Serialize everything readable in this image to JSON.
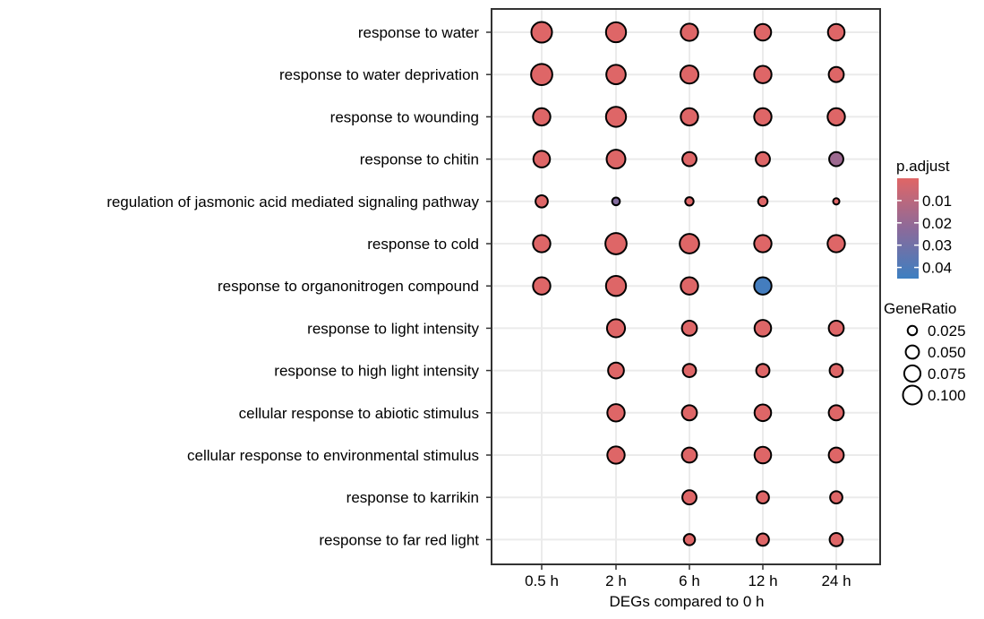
{
  "chart_data": {
    "type": "scatter",
    "subtype": "dot-plot",
    "xlabel": "DEGs compared to 0 h",
    "ylabel": "",
    "categories": [
      "0.5 h",
      "2 h",
      "6 h",
      "12 h",
      "24 h"
    ],
    "terms": [
      "response to water",
      "response to water deprivation",
      "response to wounding",
      "response to chitin",
      "regulation of jasmonic acid mediated signaling pathway",
      "response to cold",
      "response to organonitrogen compound",
      "response to light intensity",
      "response to high light intensity",
      "cellular response to abiotic stimulus",
      "cellular response to environmental stimulus",
      "response to karrikin",
      "response to far red light"
    ],
    "points": [
      {
        "term": "response to water",
        "x": "0.5 h",
        "gene_ratio": 0.085,
        "p_adjust": 0.0005
      },
      {
        "term": "response to water",
        "x": "2 h",
        "gene_ratio": 0.08,
        "p_adjust": 0.0005
      },
      {
        "term": "response to water",
        "x": "6 h",
        "gene_ratio": 0.06,
        "p_adjust": 0.0005
      },
      {
        "term": "response to water",
        "x": "12 h",
        "gene_ratio": 0.055,
        "p_adjust": 0.0005
      },
      {
        "term": "response to water",
        "x": "24 h",
        "gene_ratio": 0.055,
        "p_adjust": 0.0005
      },
      {
        "term": "response to water deprivation",
        "x": "0.5 h",
        "gene_ratio": 0.09,
        "p_adjust": 0.0005
      },
      {
        "term": "response to water deprivation",
        "x": "2 h",
        "gene_ratio": 0.075,
        "p_adjust": 0.0005
      },
      {
        "term": "response to water deprivation",
        "x": "6 h",
        "gene_ratio": 0.065,
        "p_adjust": 0.0005
      },
      {
        "term": "response to water deprivation",
        "x": "12 h",
        "gene_ratio": 0.06,
        "p_adjust": 0.0005
      },
      {
        "term": "response to water deprivation",
        "x": "24 h",
        "gene_ratio": 0.045,
        "p_adjust": 0.0005
      },
      {
        "term": "response to wounding",
        "x": "0.5 h",
        "gene_ratio": 0.06,
        "p_adjust": 0.0005
      },
      {
        "term": "response to wounding",
        "x": "2 h",
        "gene_ratio": 0.08,
        "p_adjust": 0.0005
      },
      {
        "term": "response to wounding",
        "x": "6 h",
        "gene_ratio": 0.06,
        "p_adjust": 0.0005
      },
      {
        "term": "response to wounding",
        "x": "12 h",
        "gene_ratio": 0.06,
        "p_adjust": 0.0005
      },
      {
        "term": "response to wounding",
        "x": "24 h",
        "gene_ratio": 0.06,
        "p_adjust": 0.0005
      },
      {
        "term": "response to chitin",
        "x": "0.5 h",
        "gene_ratio": 0.055,
        "p_adjust": 0.0005
      },
      {
        "term": "response to chitin",
        "x": "2 h",
        "gene_ratio": 0.07,
        "p_adjust": 0.0005
      },
      {
        "term": "response to chitin",
        "x": "6 h",
        "gene_ratio": 0.04,
        "p_adjust": 0.0005
      },
      {
        "term": "response to chitin",
        "x": "12 h",
        "gene_ratio": 0.04,
        "p_adjust": 0.0005
      },
      {
        "term": "response to chitin",
        "x": "24 h",
        "gene_ratio": 0.04,
        "p_adjust": 0.018
      },
      {
        "term": "regulation of jasmonic acid mediated signaling pathway",
        "x": "0.5 h",
        "gene_ratio": 0.03,
        "p_adjust": 0.0005
      },
      {
        "term": "regulation of jasmonic acid mediated signaling pathway",
        "x": "2 h",
        "gene_ratio": 0.012,
        "p_adjust": 0.025
      },
      {
        "term": "regulation of jasmonic acid mediated signaling pathway",
        "x": "6 h",
        "gene_ratio": 0.014,
        "p_adjust": 0.0005
      },
      {
        "term": "regulation of jasmonic acid mediated signaling pathway",
        "x": "12 h",
        "gene_ratio": 0.018,
        "p_adjust": 0.0005
      },
      {
        "term": "regulation of jasmonic acid mediated signaling pathway",
        "x": "24 h",
        "gene_ratio": 0.008,
        "p_adjust": 0.0005
      },
      {
        "term": "response to cold",
        "x": "0.5 h",
        "gene_ratio": 0.06,
        "p_adjust": 0.0005
      },
      {
        "term": "response to cold",
        "x": "2 h",
        "gene_ratio": 0.09,
        "p_adjust": 0.0005
      },
      {
        "term": "response to cold",
        "x": "6 h",
        "gene_ratio": 0.075,
        "p_adjust": 0.0005
      },
      {
        "term": "response to cold",
        "x": "12 h",
        "gene_ratio": 0.06,
        "p_adjust": 0.0005
      },
      {
        "term": "response to cold",
        "x": "24 h",
        "gene_ratio": 0.06,
        "p_adjust": 0.0005
      },
      {
        "term": "response to organonitrogen compound",
        "x": "0.5 h",
        "gene_ratio": 0.06,
        "p_adjust": 0.0005
      },
      {
        "term": "response to organonitrogen compound",
        "x": "2 h",
        "gene_ratio": 0.08,
        "p_adjust": 0.0005
      },
      {
        "term": "response to organonitrogen compound",
        "x": "6 h",
        "gene_ratio": 0.06,
        "p_adjust": 0.0005
      },
      {
        "term": "response to organonitrogen compound",
        "x": "12 h",
        "gene_ratio": 0.06,
        "p_adjust": 0.043
      },
      {
        "term": "response to light intensity",
        "x": "2 h",
        "gene_ratio": 0.065,
        "p_adjust": 0.0005
      },
      {
        "term": "response to light intensity",
        "x": "6 h",
        "gene_ratio": 0.045,
        "p_adjust": 0.0005
      },
      {
        "term": "response to light intensity",
        "x": "12 h",
        "gene_ratio": 0.055,
        "p_adjust": 0.0005
      },
      {
        "term": "response to light intensity",
        "x": "24 h",
        "gene_ratio": 0.045,
        "p_adjust": 0.0005
      },
      {
        "term": "response to high light intensity",
        "x": "2 h",
        "gene_ratio": 0.05,
        "p_adjust": 0.0005
      },
      {
        "term": "response to high light intensity",
        "x": "6 h",
        "gene_ratio": 0.035,
        "p_adjust": 0.0005
      },
      {
        "term": "response to high light intensity",
        "x": "12 h",
        "gene_ratio": 0.035,
        "p_adjust": 0.0005
      },
      {
        "term": "response to high light intensity",
        "x": "24 h",
        "gene_ratio": 0.035,
        "p_adjust": 0.0005
      },
      {
        "term": "cellular response to abiotic stimulus",
        "x": "2 h",
        "gene_ratio": 0.06,
        "p_adjust": 0.0005
      },
      {
        "term": "cellular response to abiotic stimulus",
        "x": "6 h",
        "gene_ratio": 0.045,
        "p_adjust": 0.0005
      },
      {
        "term": "cellular response to abiotic stimulus",
        "x": "12 h",
        "gene_ratio": 0.055,
        "p_adjust": 0.0005
      },
      {
        "term": "cellular response to abiotic stimulus",
        "x": "24 h",
        "gene_ratio": 0.045,
        "p_adjust": 0.0005
      },
      {
        "term": "cellular response to environmental stimulus",
        "x": "2 h",
        "gene_ratio": 0.06,
        "p_adjust": 0.0005
      },
      {
        "term": "cellular response to environmental stimulus",
        "x": "6 h",
        "gene_ratio": 0.045,
        "p_adjust": 0.0005
      },
      {
        "term": "cellular response to environmental stimulus",
        "x": "12 h",
        "gene_ratio": 0.055,
        "p_adjust": 0.0005
      },
      {
        "term": "cellular response to environmental stimulus",
        "x": "24 h",
        "gene_ratio": 0.045,
        "p_adjust": 0.0005
      },
      {
        "term": "response to karrikin",
        "x": "6 h",
        "gene_ratio": 0.04,
        "p_adjust": 0.0005
      },
      {
        "term": "response to karrikin",
        "x": "12 h",
        "gene_ratio": 0.03,
        "p_adjust": 0.0005
      },
      {
        "term": "response to karrikin",
        "x": "24 h",
        "gene_ratio": 0.03,
        "p_adjust": 0.0005
      },
      {
        "term": "response to far red light",
        "x": "6 h",
        "gene_ratio": 0.025,
        "p_adjust": 0.0005
      },
      {
        "term": "response to far red light",
        "x": "12 h",
        "gene_ratio": 0.03,
        "p_adjust": 0.0005
      },
      {
        "term": "response to far red light",
        "x": "24 h",
        "gene_ratio": 0.035,
        "p_adjust": 0.0005
      }
    ],
    "color_legend": {
      "title": "p.adjust",
      "ticks": [
        "0.01",
        "0.02",
        "0.03",
        "0.04"
      ],
      "tick_values": [
        0.01,
        0.02,
        0.03,
        0.04
      ],
      "range": [
        0,
        0.045
      ],
      "low_color": "#E06666",
      "mid_color": "#8C6A9A",
      "high_color": "#3D7FC1"
    },
    "size_legend": {
      "title": "GeneRatio",
      "ticks": [
        "0.025",
        "0.050",
        "0.075",
        "0.100"
      ],
      "tick_values": [
        0.025,
        0.05,
        0.075,
        0.1
      ]
    },
    "grid": true,
    "legend_position": "right"
  }
}
